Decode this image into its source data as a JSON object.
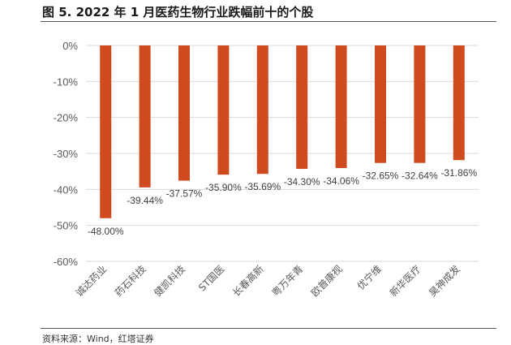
{
  "figure": {
    "title": "图 5. 2022 年 1 月医药生物行业跌幅前十的个股",
    "source": "资料来源：Wind，红塔证券"
  },
  "colors": {
    "bar": "#D04A1F",
    "grid": "#d9d9d9",
    "axis_text": "#595959"
  },
  "chart_data": {
    "type": "bar",
    "title": "",
    "xlabel": "",
    "ylabel": "",
    "categories": [
      "诚达药业",
      "药石科技",
      "健凯科技",
      "ST国医",
      "长春高新",
      "粤万年青",
      "欧普康视",
      "优宁维",
      "新华医疗",
      "昊神成发"
    ],
    "values": [
      -48.0,
      -39.44,
      -37.57,
      -35.9,
      -35.69,
      -34.3,
      -34.06,
      -32.65,
      -32.64,
      -31.86
    ],
    "data_labels": [
      "-48.00%",
      "-39.44%",
      "-37.57%",
      "-35.90%",
      "-35.69%",
      "-34.30%",
      "-34.06%",
      "-32.65%",
      "-32.64%",
      "-31.86%"
    ],
    "ylim": [
      -60,
      0
    ],
    "yticks": [
      0,
      -10,
      -20,
      -30,
      -40,
      -50,
      -60
    ],
    "ytick_labels": [
      "0%",
      "-10%",
      "-20%",
      "-30%",
      "-40%",
      "-50%",
      "-60%"
    ],
    "grid": true,
    "legend": "none"
  }
}
